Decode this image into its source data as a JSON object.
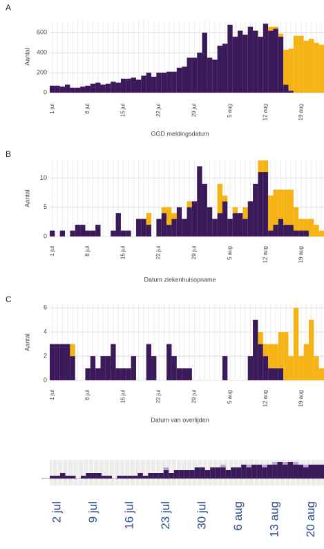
{
  "charts": [
    {
      "type": "bar",
      "panel": "A",
      "ylabel": "Aantal",
      "xlabel": "GGD meldingsdatum",
      "categories": [
        "1 jul",
        null,
        null,
        null,
        null,
        null,
        null,
        "8 jul",
        null,
        null,
        null,
        null,
        null,
        null,
        "15 jul",
        null,
        null,
        null,
        null,
        null,
        null,
        "22 jul",
        null,
        null,
        null,
        null,
        null,
        null,
        "29 jul",
        null,
        null,
        null,
        null,
        null,
        null,
        "5 aug",
        null,
        null,
        null,
        null,
        null,
        null,
        "12 aug",
        null,
        null,
        null,
        null,
        null,
        null,
        "19 aug",
        null,
        null,
        null,
        null
      ],
      "series": [
        {
          "color": "#3b1a5a",
          "values": [
            70,
            70,
            60,
            80,
            50,
            50,
            60,
            70,
            90,
            100,
            80,
            90,
            110,
            100,
            140,
            140,
            150,
            130,
            170,
            200,
            160,
            200,
            200,
            210,
            210,
            250,
            260,
            350,
            350,
            400,
            600,
            350,
            330,
            470,
            490,
            680,
            560,
            620,
            580,
            660,
            620,
            560,
            690,
            620,
            640,
            560,
            80,
            20,
            0,
            0,
            0,
            0,
            0,
            0
          ]
        },
        {
          "color": "#f5b315",
          "values": [
            0,
            0,
            0,
            0,
            0,
            0,
            0,
            0,
            0,
            0,
            0,
            0,
            0,
            0,
            0,
            0,
            0,
            0,
            0,
            0,
            0,
            0,
            0,
            0,
            0,
            0,
            0,
            0,
            0,
            0,
            0,
            0,
            0,
            0,
            0,
            0,
            0,
            0,
            0,
            0,
            0,
            0,
            0,
            40,
            20,
            30,
            350,
            420,
            570,
            570,
            520,
            540,
            500,
            480
          ]
        }
      ],
      "ylim": [
        0,
        720
      ],
      "yticks": [
        0,
        200,
        400,
        600
      ]
    },
    {
      "type": "bar",
      "panel": "B",
      "ylabel": "Aantal",
      "xlabel": "Datum ziekenhuisopname",
      "categories": [
        "1 jul",
        null,
        null,
        null,
        null,
        null,
        null,
        "8 jul",
        null,
        null,
        null,
        null,
        null,
        null,
        "15 jul",
        null,
        null,
        null,
        null,
        null,
        null,
        "22 jul",
        null,
        null,
        null,
        null,
        null,
        null,
        "29 jul",
        null,
        null,
        null,
        null,
        null,
        null,
        "5 aug",
        null,
        null,
        null,
        null,
        null,
        null,
        "12 aug",
        null,
        null,
        null,
        null,
        null,
        null,
        "19 aug",
        null,
        null,
        null,
        null
      ],
      "series": [
        {
          "color": "#3b1a5a",
          "values": [
            1,
            0,
            1,
            0,
            1,
            2,
            2,
            1,
            1,
            2,
            0,
            0,
            1,
            4,
            1,
            1,
            0,
            3,
            3,
            2,
            0,
            3,
            4,
            2,
            3,
            5,
            3,
            5,
            6,
            12,
            9,
            5,
            3,
            4,
            6,
            3,
            4,
            4,
            3,
            6,
            9,
            11,
            11,
            1,
            2,
            3,
            2,
            2,
            1,
            1,
            1,
            0,
            0,
            0
          ]
        },
        {
          "color": "#f5b315",
          "values": [
            0,
            0,
            0,
            0,
            0,
            0,
            0,
            0,
            0,
            0,
            0,
            0,
            0,
            0,
            0,
            0,
            0,
            0,
            0,
            2,
            0,
            0,
            1,
            3,
            1,
            0,
            0,
            1,
            0,
            0,
            0,
            0,
            0,
            5,
            1,
            0,
            1,
            0,
            2,
            0,
            0,
            2,
            2,
            6,
            6,
            5,
            6,
            6,
            4,
            2,
            2,
            3,
            2,
            1
          ]
        }
      ],
      "ylim": [
        0,
        13
      ],
      "yticks": [
        0,
        5,
        10
      ]
    },
    {
      "type": "bar",
      "panel": "C",
      "ylabel": "Aantal",
      "xlabel": "Datum van overlijden",
      "categories": [
        "1 jul",
        null,
        null,
        null,
        null,
        null,
        null,
        "8 jul",
        null,
        null,
        null,
        null,
        null,
        null,
        "15 jul",
        null,
        null,
        null,
        null,
        null,
        null,
        "22 jul",
        null,
        null,
        null,
        null,
        null,
        null,
        "29 jul",
        null,
        null,
        null,
        null,
        null,
        null,
        "5 aug",
        null,
        null,
        null,
        null,
        null,
        null,
        "12 aug",
        null,
        null,
        null,
        null,
        null,
        null,
        "19 aug",
        null,
        null,
        null,
        null
      ],
      "series": [
        {
          "color": "#3b1a5a",
          "values": [
            3,
            3,
            3,
            3,
            2,
            0,
            0,
            1,
            2,
            1,
            2,
            2,
            3,
            1,
            1,
            1,
            2,
            0,
            0,
            3,
            2,
            0,
            0,
            3,
            2,
            1,
            1,
            1,
            0,
            0,
            0,
            0,
            0,
            0,
            2,
            0,
            0,
            0,
            0,
            2,
            5,
            3,
            2,
            1,
            1,
            1,
            0,
            0,
            0,
            0,
            0,
            0,
            0,
            0
          ]
        },
        {
          "color": "#f5b315",
          "values": [
            0,
            0,
            0,
            0,
            1,
            0,
            0,
            0,
            0,
            0,
            0,
            0,
            0,
            0,
            0,
            0,
            0,
            0,
            0,
            0,
            0,
            0,
            0,
            0,
            0,
            0,
            0,
            0,
            0,
            0,
            0,
            0,
            0,
            0,
            0,
            0,
            0,
            0,
            0,
            0,
            0,
            1,
            1,
            2,
            2,
            3,
            4,
            2,
            6,
            2,
            3,
            5,
            2,
            1
          ]
        }
      ],
      "ylim": [
        0,
        6.3
      ],
      "yticks": [
        0,
        2,
        4,
        6
      ]
    },
    {
      "type": "mini",
      "categories": [
        null,
        "2 jul",
        null,
        null,
        null,
        null,
        null,
        null,
        "9 jul",
        null,
        null,
        null,
        null,
        null,
        null,
        "16 jul",
        null,
        null,
        null,
        null,
        null,
        null,
        "23 jul",
        null,
        null,
        null,
        null,
        null,
        null,
        "30 jul",
        null,
        null,
        null,
        null,
        null,
        null,
        "6 aug",
        null,
        null,
        null,
        null,
        null,
        null,
        "13 aug",
        null,
        null,
        null,
        null,
        null,
        null,
        "20 aug",
        null,
        null
      ],
      "series": [
        {
          "color": "#3b1a5a",
          "values": [
            1,
            1,
            2,
            1,
            1,
            0,
            1,
            2,
            2,
            2,
            1,
            1,
            0,
            1,
            1,
            1,
            1,
            2,
            1,
            2,
            2,
            2,
            3,
            2,
            3,
            3,
            3,
            3,
            4,
            4,
            3,
            4,
            4,
            4,
            3,
            4,
            4,
            5,
            4,
            5,
            5,
            4,
            5,
            5,
            6,
            5,
            6,
            5,
            5,
            4,
            5,
            5,
            5
          ]
        },
        {
          "color": "#b9a3cf",
          "values": [
            0,
            0,
            0,
            0,
            0,
            0,
            0,
            0,
            0,
            0,
            0,
            0,
            0,
            0,
            0,
            0,
            0,
            0,
            0,
            0,
            0,
            0,
            1,
            0,
            0,
            0,
            0,
            0,
            0,
            0,
            0,
            0,
            0,
            1,
            0,
            0,
            0,
            0,
            1,
            0,
            0,
            1,
            0,
            1,
            0,
            1,
            0,
            1,
            0,
            1,
            0,
            0,
            0
          ]
        }
      ]
    }
  ]
}
